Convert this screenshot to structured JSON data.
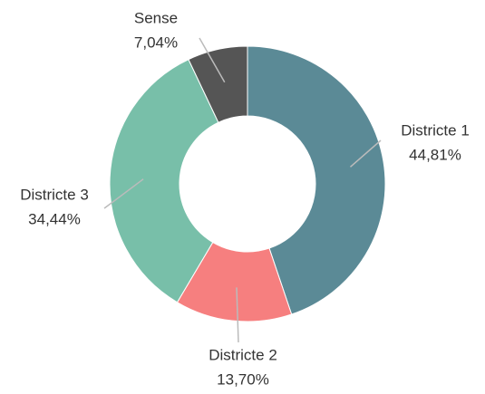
{
  "chart_data": {
    "type": "donut",
    "categories": [
      "Districte 1",
      "Districte 2",
      "Districte 3",
      "Sense"
    ],
    "values": [
      44.81,
      13.7,
      34.44,
      7.04
    ],
    "value_labels": [
      "44,81%",
      "13,70%",
      "34,44%",
      "7,04%"
    ],
    "colors": [
      "#5b8a96",
      "#f67f7f",
      "#78bfa9",
      "#555555"
    ]
  }
}
